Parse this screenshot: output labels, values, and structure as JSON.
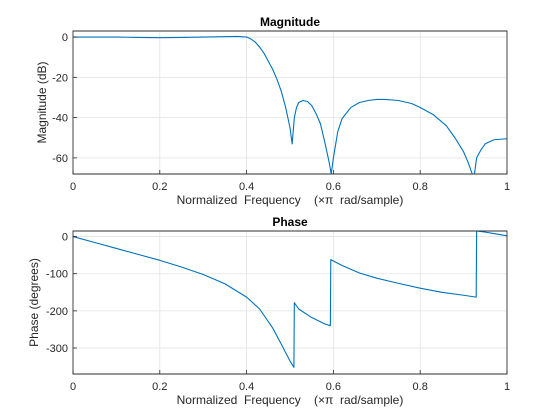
{
  "chart_data": [
    {
      "type": "line",
      "title": "Magnitude",
      "xlabel": "Normalized  Frequency    (×π  rad/sample)",
      "ylabel": "Magnitude (dB)",
      "xlim": [
        0,
        1
      ],
      "ylim": [
        -68,
        3
      ],
      "xticks": [
        0,
        0.2,
        0.4,
        0.6,
        0.8,
        1
      ],
      "xtick_labels": [
        "0",
        "0.2",
        "0.4",
        "0.6",
        "0.8",
        "1"
      ],
      "yticks": [
        0,
        -20,
        -40,
        -60
      ],
      "ytick_labels": [
        "0",
        "-20",
        "-40",
        "-60"
      ],
      "grid": true,
      "line_color": "#0072bd",
      "series": [
        {
          "x": [
            0,
            0.05,
            0.1,
            0.15,
            0.2,
            0.25,
            0.3,
            0.35,
            0.38,
            0.4,
            0.41,
            0.42,
            0.43,
            0.44,
            0.45,
            0.46,
            0.47,
            0.48,
            0.49,
            0.5,
            0.505,
            0.507,
            0.51,
            0.515,
            0.52,
            0.53,
            0.54,
            0.55,
            0.56,
            0.57,
            0.58,
            0.59,
            0.595,
            0.6,
            0.61,
            0.62,
            0.64,
            0.66,
            0.68,
            0.7,
            0.72,
            0.75,
            0.78,
            0.8,
            0.83,
            0.86,
            0.88,
            0.9,
            0.91,
            0.92,
            0.925,
            0.93,
            0.94,
            0.95,
            0.97,
            1
          ],
          "y": [
            0,
            0,
            0,
            -0.2,
            -0.3,
            -0.2,
            0,
            0.2,
            0.3,
            0,
            -1,
            -2.5,
            -5,
            -8,
            -12,
            -16,
            -21,
            -27,
            -35,
            -45,
            -53,
            -48,
            -40,
            -35,
            -32.5,
            -31.5,
            -32,
            -34,
            -38,
            -43,
            -52,
            -62,
            -68,
            -60,
            -47,
            -40.5,
            -35,
            -32.5,
            -31.5,
            -31,
            -31,
            -31.5,
            -33,
            -35,
            -38.5,
            -44,
            -50,
            -57,
            -62,
            -68,
            -68,
            -60,
            -56,
            -53,
            -51,
            -50.5
          ]
        }
      ]
    },
    {
      "type": "line",
      "title": "Phase",
      "xlabel": "Normalized  Frequency    (×π  rad/sample)",
      "ylabel": "Phase (degrees)",
      "xlim": [
        0,
        1
      ],
      "ylim": [
        -370,
        15
      ],
      "xticks": [
        0,
        0.2,
        0.4,
        0.6,
        0.8,
        1
      ],
      "xtick_labels": [
        "0",
        "0.2",
        "0.4",
        "0.6",
        "0.8",
        "1"
      ],
      "yticks": [
        0,
        -100,
        -200,
        -300
      ],
      "ytick_labels": [
        "0",
        "-100",
        "-200",
        "-300"
      ],
      "grid": true,
      "line_color": "#0072bd",
      "series": [
        {
          "x": [
            0,
            0.05,
            0.1,
            0.15,
            0.2,
            0.25,
            0.3,
            0.35,
            0.4,
            0.43,
            0.46,
            0.48,
            0.5,
            0.509,
            0.51,
            0.52,
            0.55,
            0.58,
            0.593,
            0.594,
            0.62,
            0.66,
            0.7,
            0.75,
            0.8,
            0.85,
            0.9,
            0.929,
            0.93,
            0.95,
            0.97,
            1
          ],
          "y": [
            0,
            -16,
            -32,
            -48,
            -64,
            -82,
            -102,
            -127,
            -163,
            -195,
            -246,
            -290,
            -335,
            -352,
            -178,
            -195,
            -218,
            -235,
            -240,
            -62,
            -78,
            -98,
            -112,
            -126,
            -139,
            -150,
            -158,
            -163,
            15,
            12,
            8,
            2
          ]
        }
      ]
    }
  ]
}
